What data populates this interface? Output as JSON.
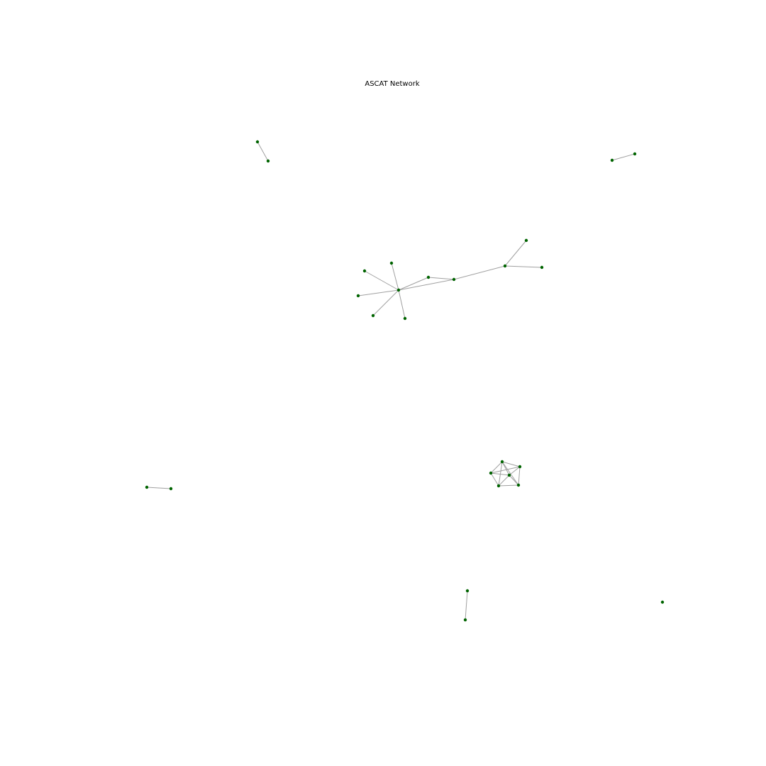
{
  "title": "ASCAT Network",
  "colors": {
    "node": "#006400",
    "edge": "#a0a0a0",
    "background": "#ffffff"
  },
  "graph": {
    "nodes": [
      {
        "id": "n1"
      },
      {
        "id": "n2"
      },
      {
        "id": "n3"
      },
      {
        "id": "n4"
      },
      {
        "id": "h"
      },
      {
        "id": "a1"
      },
      {
        "id": "a2"
      },
      {
        "id": "a3"
      },
      {
        "id": "a4"
      },
      {
        "id": "a5"
      },
      {
        "id": "b1"
      },
      {
        "id": "b2"
      },
      {
        "id": "b3"
      },
      {
        "id": "b4"
      },
      {
        "id": "b5"
      },
      {
        "id": "c1"
      },
      {
        "id": "c2"
      },
      {
        "id": "c3"
      },
      {
        "id": "c4"
      },
      {
        "id": "c5"
      },
      {
        "id": "c6"
      },
      {
        "id": "d1"
      },
      {
        "id": "d2"
      },
      {
        "id": "e1"
      },
      {
        "id": "e2"
      },
      {
        "id": "f1"
      }
    ],
    "edges": [
      [
        "n1",
        "n2"
      ],
      [
        "n3",
        "n4"
      ],
      [
        "h",
        "a1"
      ],
      [
        "h",
        "a2"
      ],
      [
        "h",
        "a3"
      ],
      [
        "h",
        "a4"
      ],
      [
        "h",
        "a5"
      ],
      [
        "h",
        "b1"
      ],
      [
        "b1",
        "b2"
      ],
      [
        "h",
        "b2"
      ],
      [
        "b2",
        "b3"
      ],
      [
        "b3",
        "b4"
      ],
      [
        "b3",
        "b5"
      ],
      [
        "c1",
        "c2"
      ],
      [
        "c1",
        "c3"
      ],
      [
        "c1",
        "c4"
      ],
      [
        "c1",
        "c5"
      ],
      [
        "c1",
        "c6"
      ],
      [
        "c2",
        "c3"
      ],
      [
        "c2",
        "c4"
      ],
      [
        "c2",
        "c6"
      ],
      [
        "c3",
        "c4"
      ],
      [
        "c3",
        "c5"
      ],
      [
        "c4",
        "c5"
      ],
      [
        "c4",
        "c6"
      ],
      [
        "c5",
        "c6"
      ],
      [
        "d1",
        "d2"
      ],
      [
        "e1",
        "e2"
      ]
    ]
  }
}
